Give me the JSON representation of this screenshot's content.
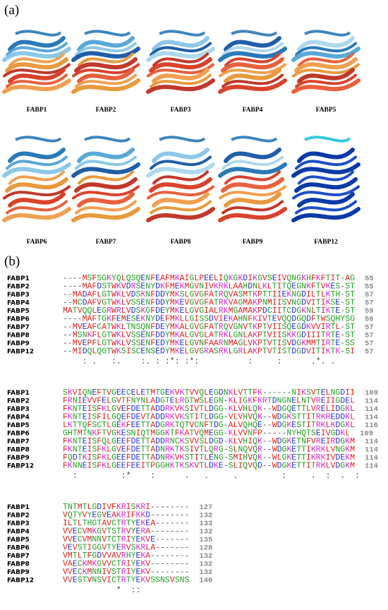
{
  "panels": {
    "a": {
      "label": "(a)",
      "structures": [
        "FABP1",
        "FABP2",
        "FABP3",
        "FABP4",
        "FABP5",
        "FABP6",
        "FABP7",
        "FABP8",
        "FABP9",
        "FABP12"
      ]
    },
    "b": {
      "label": "(b)",
      "blocks": [
        {
          "rows": [
            {
              "name": "FABP1",
              "sequence": "----MSFSGKYQLQSQENFEAFMKAIGLPEELIQKGKDIKGVSEIVQNGKHFKFTIT-AG",
              "end": 55
            },
            {
              "name": "FABP2",
              "sequence": "----MAFDSTWKVDRSENYDKFMEKMGVNIVKRKLAAHDNLKLTITQEGNKFTVKES-ST",
              "end": 55
            },
            {
              "name": "FABP3",
              "sequence": "--MADAFLGTWKLVDSKNFDDYMKSLGVGFATRQVASMTKPTTIIEKNGDILTLKTH-ST",
              "end": 57
            },
            {
              "name": "FABP4",
              "sequence": "--MCDAFVGTWKLVSSENFDDYMKEVGVGFATRKVAGMAKPNMIISVNGDVITIKSE-ST",
              "end": 57
            },
            {
              "name": "FABP5",
              "sequence": "MATVQQLEGRWRLVDSKGFDEYMKELGVGIALRKMGAMAKPDCIITCDGKNLTIKTE-ST",
              "end": 59
            },
            {
              "name": "FABP6",
              "sequence": "----MAFTGKFEMESEKNYDEFMKLLGISSDVIEKAHNFKIVTEVQQDGQDFTWSQHYSG",
              "end": 56
            },
            {
              "name": "FABP7",
              "sequence": "--MVEAFCATWKLTNSQNFDEYMKALGVGFATRQVGNVTKPTVIISQEGDKVVIRTL-ST",
              "end": 57
            },
            {
              "name": "FABP8",
              "sequence": "--MSNKFLGTWKLVSSENFDDYMKALGVGLATRKLGNLAKPTVIISKKGDIIITRTE-ST",
              "end": 57
            },
            {
              "name": "FABP9",
              "sequence": "--MVEPFLGTWKLVSSENFEDYMKELGVNFAARNMAGLVKPTVTISVDGKMMTIRTE-SS",
              "end": 57
            },
            {
              "name": "FABP12",
              "sequence": "--MIDQLQGTWKSISCENSEDYMKELGVGRASRKLGRLAKPTVTISTDGDVITIKTK-SI",
              "end": 57
            }
          ],
          "consensus": "    : .   :.    :. : :*: :*:          :     :      .*. ."
        },
        {
          "rows": [
            {
              "name": "FABP1",
              "sequence": "SKVIQNEFTVGEECELETMTGEKVKTVVQLEGDNKLVTTFK------NIKSVTELNGDII",
              "end": 109
            },
            {
              "name": "FABP2",
              "sequence": "FRNIEVVFELGVTFNYNLADGTELRGTWSLEGN-KLIGKFKRTDNGNELNTVREIIGDEL",
              "end": 114
            },
            {
              "name": "FABP3",
              "sequence": "FKNTEISFKLGVEFDETTADDRKVKSIVTLDGG-KLVHLQK--WDGQETTLVRELIDGKL",
              "end": 114
            },
            {
              "name": "FABP4",
              "sequence": "FKNTEISFILGQEFDEVTADDRKVKSTITLDGG-VLVHVQK--WDGKSTTITRKREDDKL",
              "end": 114
            },
            {
              "name": "FABP5",
              "sequence": "LKTTQFSCTLGEKFEETTADGRKTQTVCNFTDG-ALVQHQE--WDGKESTITRKLKDGKL",
              "end": 116
            },
            {
              "name": "FABP6",
              "sequence": "GHTMTNKFTVGKESNIQTMGGKTFKATVQMEGG-KLVVNFP-----NYHQTSEIVGDKL",
              "end": 109
            },
            {
              "name": "FABP7",
              "sequence": "FKNTEISFQLGEEFDETTADDRNCKSVVSLDGD-KLVHIQK--WDGKETNFVREIRDGKM",
              "end": 114
            },
            {
              "name": "FABP8",
              "sequence": "FKNTEISFKLGVEFDETTADNRKTKSIVTLQRG-SLNQVQR--WDGKETTIKRKLVNGKM",
              "end": 114
            },
            {
              "name": "FABP9",
              "sequence": "FQDTKISFKLGEEFDETTADNRKVKSTITLENG-SMIHVQK--WLGKETTIKRKIVDEKM",
              "end": 114
            },
            {
              "name": "FABP12",
              "sequence": "FKNNEISFKLGEEFEEITPGGHKTKSKVTLDKE-SLIQVQD--WDGKETTITRKLVDGKM",
              "end": 114
            }
          ],
          "consensus": "  :         :*    :      .   .     .         :     .  :  .  :"
        },
        {
          "rows": [
            {
              "name": "FABP1",
              "sequence": "TNTMTLGDIVFKRISKRI--------",
              "end": 127
            },
            {
              "name": "FABP2",
              "sequence": "VQTYVYEGVEAKRIFKKD--------",
              "end": 132
            },
            {
              "name": "FABP3",
              "sequence": "ILTLTHGTAVCTRTYEKEA-------",
              "end": 133
            },
            {
              "name": "FABP4",
              "sequence": "VVECVMKGVTSTRVYERA--------",
              "end": 132
            },
            {
              "name": "FABP5",
              "sequence": "VVECVMNNVTCTRIYEKVE-------",
              "end": 135
            },
            {
              "name": "FABP6",
              "sequence": "VEVSTIGGVTYERVSKRLA-------",
              "end": 128
            },
            {
              "name": "FABP7",
              "sequence": "VMTLTFGDVVAVRHYEKA--------",
              "end": 132
            },
            {
              "name": "FABP8",
              "sequence": "VAECKMKGVVCTRIYEKV--------",
              "end": 132
            },
            {
              "name": "FABP9",
              "sequence": "VVECKMNNIVSTRIYEKV--------",
              "end": 132
            },
            {
              "name": "FABP12",
              "sequence": "VVESTVNSVICTRTYEKVSSNSVSNS",
              "end": 140
            }
          ],
          "consensus": "           *  ::"
        }
      ]
    }
  }
}
